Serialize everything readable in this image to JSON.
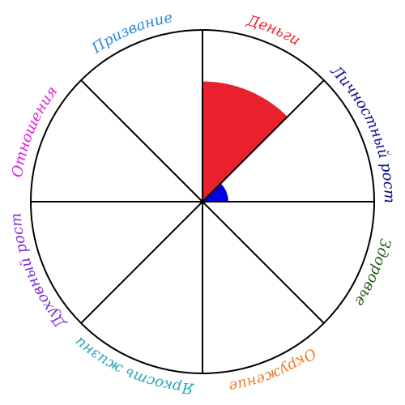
{
  "wheel": {
    "max_level": 10,
    "rim_color": "#000000",
    "divider_color": "#000000",
    "segments": [
      {
        "label": "Деньги",
        "color": "#e8212d",
        "fill_color": "#e8212d",
        "level": 7
      },
      {
        "label": "Личностный рост",
        "color": "#0a0a8c",
        "fill_color": "#0000e0",
        "level": 1.5
      },
      {
        "label": "Здоровье",
        "color": "#1f5c12",
        "fill_color": "#1f5c12",
        "level": 0
      },
      {
        "label": "Окружение",
        "color": "#f07a2a",
        "fill_color": "#f07a2a",
        "level": 0
      },
      {
        "label": "Яркость жизни",
        "color": "#27a7b8",
        "fill_color": "#27a7b8",
        "level": 0
      },
      {
        "label": "Духовный рост",
        "color": "#7b2bd6",
        "fill_color": "#7b2bd6",
        "level": 0
      },
      {
        "label": "Отношения",
        "color": "#e01ee0",
        "fill_color": "#e01ee0",
        "level": 0
      },
      {
        "label": "Призвание",
        "color": "#2a86d8",
        "fill_color": "#2a86d8",
        "level": 0
      }
    ]
  }
}
